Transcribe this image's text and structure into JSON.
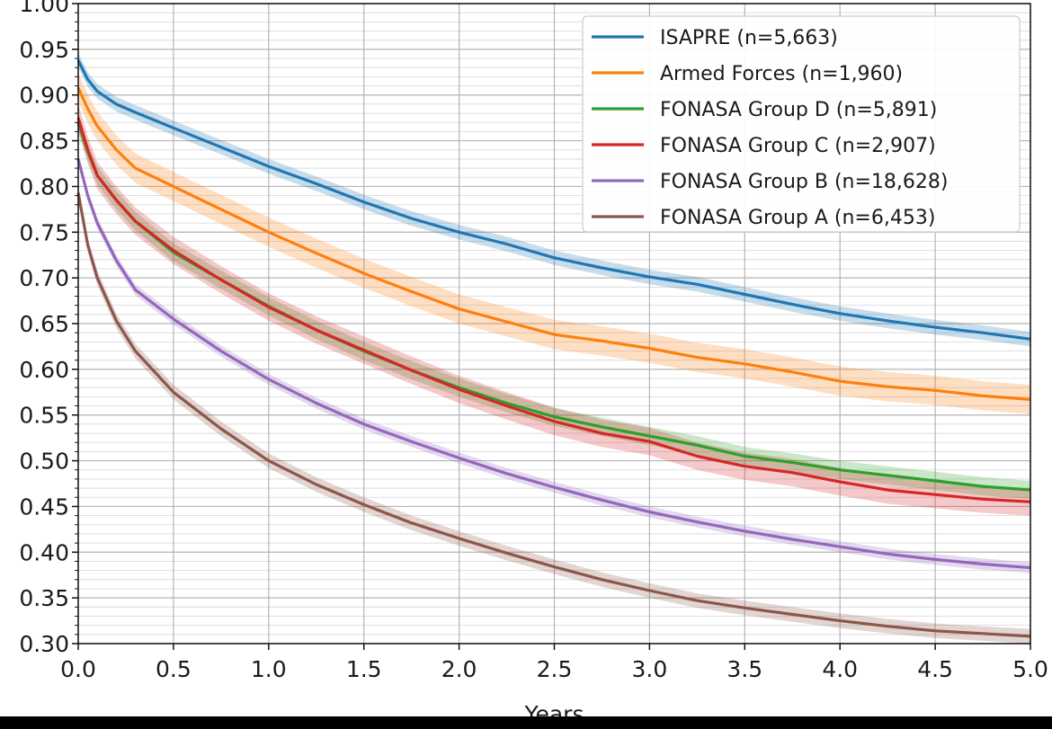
{
  "chart_data": {
    "type": "line",
    "title": "",
    "xlabel": "Years",
    "ylabel": "",
    "xlim": [
      0,
      5
    ],
    "ylim": [
      0.3,
      1.0
    ],
    "xticks": [
      "0.0",
      "0.5",
      "1.0",
      "1.5",
      "2.0",
      "2.5",
      "3.0",
      "3.5",
      "4.0",
      "4.5",
      "5.0"
    ],
    "yticks": [
      "0.30",
      "0.35",
      "0.40",
      "0.45",
      "0.50",
      "0.55",
      "0.60",
      "0.65",
      "0.70",
      "0.75",
      "0.80",
      "0.85",
      "0.90",
      "0.95",
      "1.00"
    ],
    "grid": true,
    "legend_position": "top-right",
    "x": [
      0,
      0.05,
      0.1,
      0.2,
      0.3,
      0.5,
      0.75,
      1.0,
      1.25,
      1.5,
      1.75,
      2.0,
      2.25,
      2.5,
      2.75,
      3.0,
      3.25,
      3.5,
      3.75,
      4.0,
      4.25,
      4.5,
      4.75,
      5.0
    ],
    "series": [
      {
        "name": "ISAPRE (n=5,663)",
        "color": "#1f77b4",
        "values": [
          0.938,
          0.917,
          0.904,
          0.89,
          0.881,
          0.864,
          0.843,
          0.822,
          0.803,
          0.783,
          0.765,
          0.75,
          0.737,
          0.722,
          0.711,
          0.701,
          0.693,
          0.682,
          0.671,
          0.661,
          0.653,
          0.646,
          0.64,
          0.633
        ],
        "band": 0.008
      },
      {
        "name": "Armed Forces (n=1,960)",
        "color": "#ff7f0e",
        "values": [
          0.908,
          0.885,
          0.866,
          0.84,
          0.82,
          0.8,
          0.775,
          0.75,
          0.727,
          0.705,
          0.685,
          0.666,
          0.652,
          0.638,
          0.631,
          0.623,
          0.613,
          0.606,
          0.597,
          0.587,
          0.581,
          0.577,
          0.571,
          0.567
        ],
        "band": 0.016
      },
      {
        "name": "FONASA Group D (n=5,891)",
        "color": "#2ca02c",
        "values": [
          0.87,
          0.838,
          0.812,
          0.785,
          0.762,
          0.728,
          0.698,
          0.669,
          0.643,
          0.62,
          0.599,
          0.58,
          0.563,
          0.548,
          0.537,
          0.527,
          0.517,
          0.505,
          0.498,
          0.49,
          0.484,
          0.478,
          0.472,
          0.468
        ],
        "band": 0.01
      },
      {
        "name": "FONASA Group C (n=2,907)",
        "color": "#d62728",
        "values": [
          0.875,
          0.84,
          0.812,
          0.785,
          0.762,
          0.73,
          0.698,
          0.668,
          0.643,
          0.621,
          0.599,
          0.578,
          0.56,
          0.543,
          0.53,
          0.521,
          0.505,
          0.494,
          0.487,
          0.477,
          0.468,
          0.463,
          0.458,
          0.455
        ],
        "band": 0.015
      },
      {
        "name": "FONASA Group B (n=18,628)",
        "color": "#9467bd",
        "values": [
          0.83,
          0.79,
          0.76,
          0.719,
          0.687,
          0.655,
          0.62,
          0.589,
          0.563,
          0.54,
          0.521,
          0.503,
          0.486,
          0.471,
          0.457,
          0.444,
          0.433,
          0.423,
          0.414,
          0.406,
          0.398,
          0.392,
          0.387,
          0.383
        ],
        "band": 0.006
      },
      {
        "name": "FONASA Group A (n=6,453)",
        "color": "#8c564b",
        "values": [
          0.793,
          0.736,
          0.7,
          0.653,
          0.62,
          0.575,
          0.535,
          0.5,
          0.474,
          0.452,
          0.432,
          0.415,
          0.399,
          0.384,
          0.37,
          0.358,
          0.347,
          0.339,
          0.332,
          0.325,
          0.319,
          0.314,
          0.311,
          0.308
        ],
        "band": 0.008
      }
    ]
  }
}
